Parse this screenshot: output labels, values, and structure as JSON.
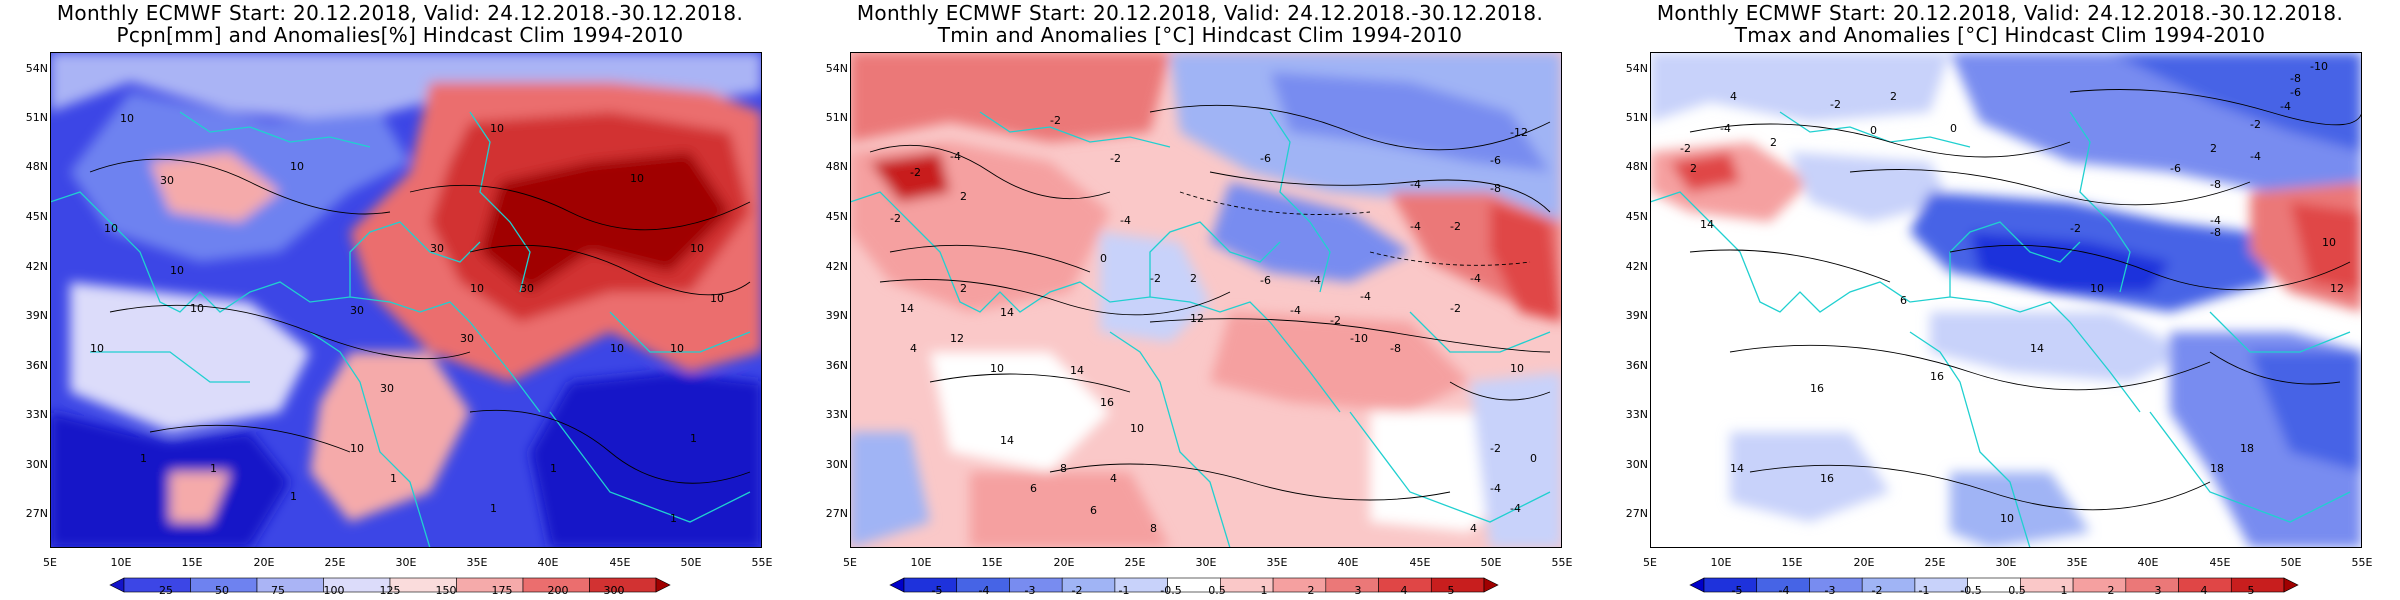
{
  "panels": [
    {
      "title_line1": "Monthly ECMWF Start: 20.12.2018, Valid: 24.12.2018.-30.12.2018.",
      "title_line2": "Pcpn[mm] and Anomalies[%] Hindcast Clim 1994-2010",
      "colorbar_labels": [
        "25",
        "50",
        "75",
        "100",
        "125",
        "150",
        "175",
        "200",
        "300"
      ],
      "colorbar_colors": [
        "#1414c8",
        "#3c46e6",
        "#6e82f0",
        "#aab4f5",
        "#dcdcfa",
        "#fadcdc",
        "#f5aaaa",
        "#eb6e6e",
        "#d23232",
        "#a00000"
      ],
      "contour_labels": [
        "10",
        "10",
        "30",
        "10",
        "10",
        "10",
        "10",
        "10",
        "30",
        "10",
        "30",
        "30",
        "10",
        "10",
        "30",
        "10",
        "30",
        "10",
        "1",
        "1",
        "1",
        "1",
        "1",
        "1",
        "1",
        "10",
        "1",
        "10"
      ]
    },
    {
      "title_line1": "Monthly ECMWF Start: 20.12.2018, Valid: 24.12.2018.-30.12.2018.",
      "title_line2": "Tmin and Anomalies [°C] Hindcast Clim 1994-2010",
      "colorbar_labels": [
        "-5",
        "-4",
        "-3",
        "-2",
        "-1",
        "-0.5",
        "0.5",
        "1",
        "2",
        "3",
        "4",
        "5"
      ],
      "colorbar_colors": [
        "#0000c8",
        "#1e32dc",
        "#4664e6",
        "#788cf0",
        "#a0b4f5",
        "#c8d2fa",
        "#ffffff",
        "#fac8c8",
        "#f5a0a0",
        "#eb7878",
        "#e04646",
        "#c81e1e",
        "#a00000"
      ],
      "contour_labels": [
        "-2",
        "-4",
        "-2",
        "-12",
        "-6",
        "-4",
        "-8",
        "-6",
        "-2",
        "2",
        "-2",
        "-4",
        "0",
        "-4",
        "-2",
        "-2",
        "2",
        "-6",
        "-4",
        "-4",
        "-4",
        "-2",
        "-10",
        "-8",
        "-2",
        "-4",
        "10",
        "14",
        "10",
        "4",
        "2",
        "12",
        "14",
        "16",
        "6",
        "14",
        "8",
        "6",
        "10",
        "12",
        "4",
        "8",
        "4",
        "-2",
        "-4",
        "0",
        "-4",
        "14"
      ]
    },
    {
      "title_line1": "Monthly ECMWF Start: 20.12.2018, Valid: 24.12.2018.-30.12.2018.",
      "title_line2": "Tmax and Anomalies [°C] Hindcast Clim 1994-2010",
      "colorbar_labels": [
        "-5",
        "-4",
        "-3",
        "-2",
        "-1",
        "-0.5",
        "0.5",
        "1",
        "2",
        "3",
        "4",
        "5"
      ],
      "colorbar_colors": [
        "#0000c8",
        "#1e32dc",
        "#4664e6",
        "#788cf0",
        "#a0b4f5",
        "#c8d2fa",
        "#ffffff",
        "#fac8c8",
        "#f5a0a0",
        "#eb7878",
        "#e04646",
        "#c81e1e",
        "#a00000"
      ],
      "contour_labels": [
        "-10",
        "-8",
        "-6",
        "-4",
        "-2",
        "2",
        "4",
        "0",
        "-2",
        "2",
        "-2",
        "-4",
        "-6",
        "-8",
        "-4",
        "0",
        "2",
        "-2",
        "-4",
        "-8",
        "2",
        "14",
        "6",
        "10",
        "10",
        "12",
        "14",
        "16",
        "16",
        "14",
        "18",
        "16",
        "18",
        "10"
      ]
    }
  ],
  "lat_labels": [
    "54N",
    "51N",
    "48N",
    "45N",
    "42N",
    "39N",
    "36N",
    "33N",
    "30N",
    "27N"
  ],
  "lon_labels": [
    "5E",
    "10E",
    "15E",
    "20E",
    "25E",
    "30E",
    "35E",
    "40E",
    "45E",
    "50E",
    "55E"
  ]
}
